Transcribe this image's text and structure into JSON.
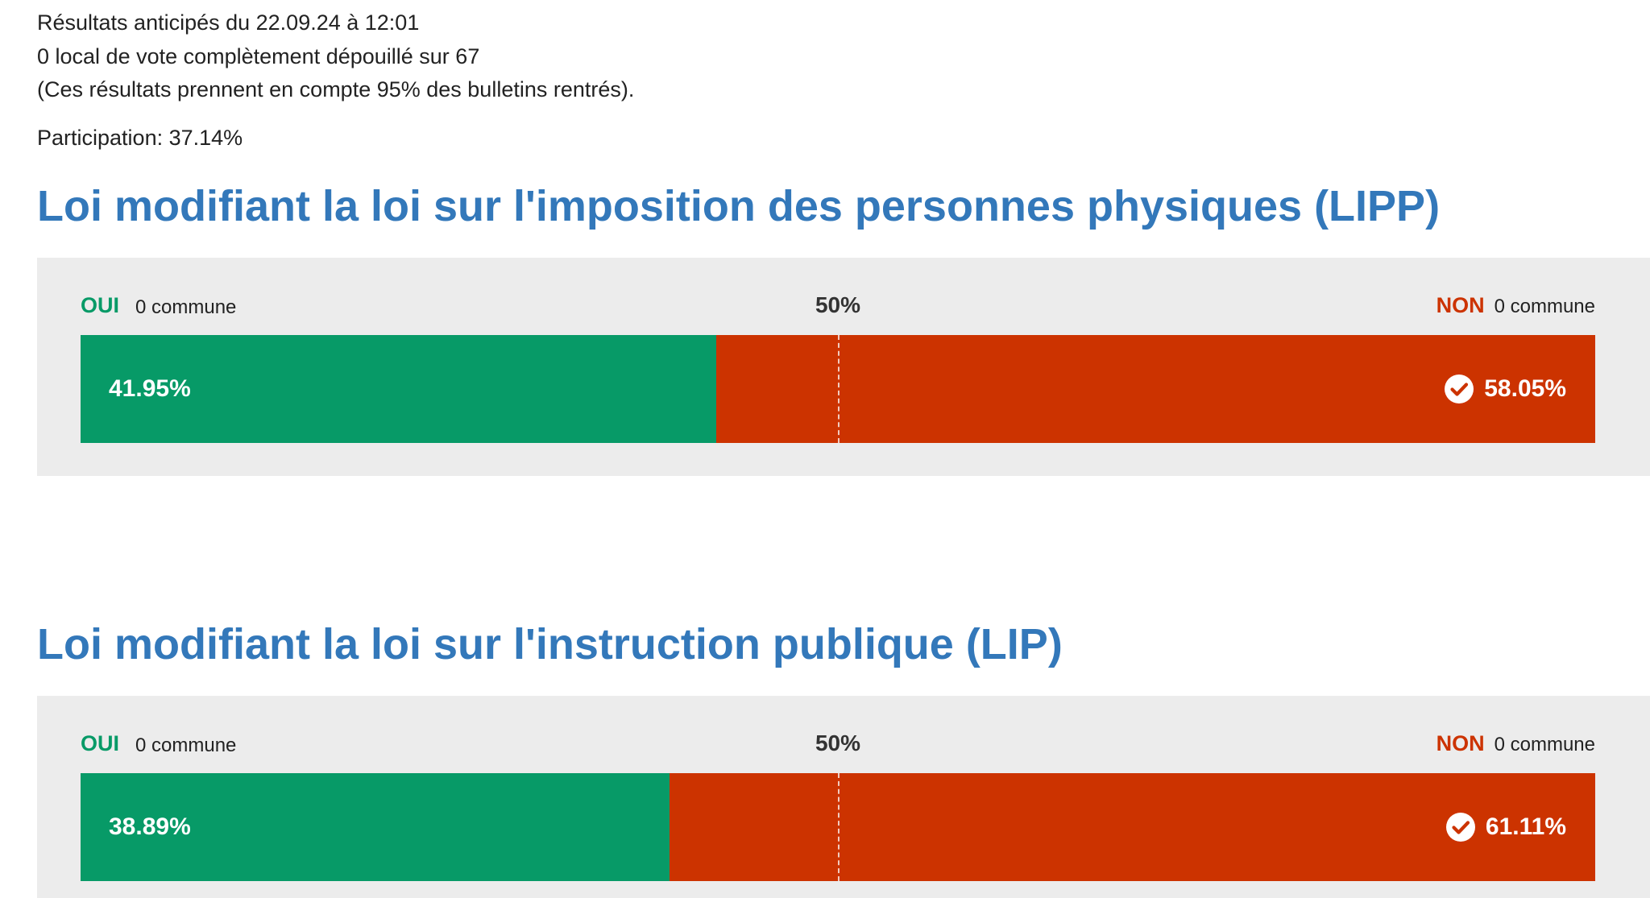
{
  "meta": {
    "line1": "Résultats anticipés du 22.09.24 à 12:01",
    "line2": "0 local de vote complètement dépouillé sur 67",
    "line3": "(Ces résultats prennent en compte 95% des bulletins rentrés).",
    "participation": "Participation: 37.14%"
  },
  "colors": {
    "yes": "#079a67",
    "no": "#cc3300",
    "title": "#3378ba",
    "panel_bg": "#ececec"
  },
  "votes": [
    {
      "title": "Loi modifiant la loi sur l'imposition des personnes physiques (LIPP)",
      "yes_label": "OUI",
      "yes_communes": "0 commune",
      "half_label": "50%",
      "no_label": "NON",
      "no_communes": "0 commune",
      "yes_pct_text": "41.95%",
      "no_pct_text": "58.05%",
      "yes_pct": 41.95,
      "no_pct": 58.05,
      "winner": "no",
      "winner_icon": "check-circle-icon"
    },
    {
      "title": "Loi modifiant la loi sur l'instruction publique (LIP)",
      "yes_label": "OUI",
      "yes_communes": "0 commune",
      "half_label": "50%",
      "no_label": "NON",
      "no_communes": "0 commune",
      "yes_pct_text": "38.89%",
      "no_pct_text": "61.11%",
      "yes_pct": 38.89,
      "no_pct": 61.11,
      "winner": "no",
      "winner_icon": "check-circle-icon"
    }
  ]
}
